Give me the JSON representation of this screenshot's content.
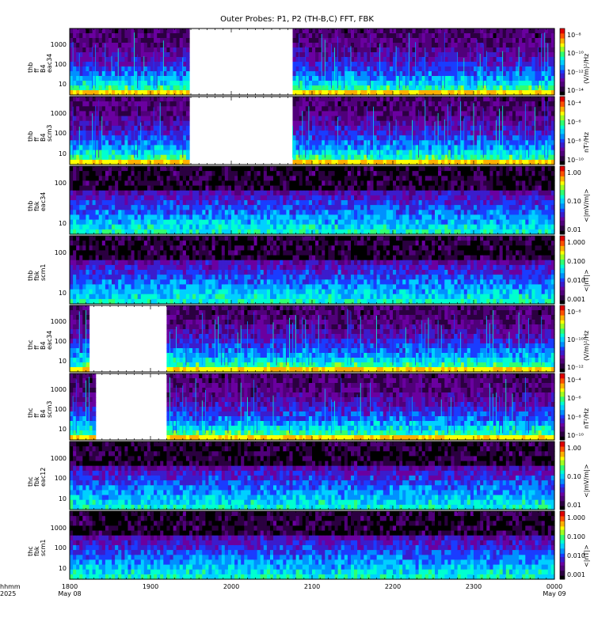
{
  "title": "Outer Probes: P1, P2 (TH-B,C) FFT, FBK",
  "x_axis": {
    "corner_label_1": "hhmm",
    "corner_label_2": "2025",
    "ticks": [
      "1800",
      "1900",
      "2000",
      "2100",
      "2200",
      "2300",
      "0000"
    ],
    "dates": [
      "May 08",
      "May 09"
    ]
  },
  "chart_data": [
    {
      "type": "heatmap",
      "panel": "thb_ff_eac34",
      "ylabel": [
        "thb",
        "ff",
        "B4",
        "eac34"
      ],
      "yticks": [
        "1000",
        "100",
        "10"
      ],
      "colorbar": {
        "ticks": [
          "10⁻⁸",
          "10⁻¹⁰",
          "10⁻¹²",
          "10⁻¹⁴"
        ],
        "unit": "(V/m)²/Hz"
      },
      "log_y": true,
      "gaps": [
        [
          "1930",
          "2045"
        ]
      ]
    },
    {
      "type": "heatmap",
      "panel": "thb_ff_scm3",
      "ylabel": [
        "thb",
        "ff",
        "B4",
        "scm3"
      ],
      "yticks": [
        "1000",
        "100",
        "10"
      ],
      "colorbar": {
        "ticks": [
          "10⁻⁴",
          "10⁻⁶",
          "10⁻⁸",
          "10⁻¹⁰"
        ],
        "unit": "nT²/Hz"
      },
      "log_y": true,
      "gaps": [
        [
          "1930",
          "2045"
        ]
      ]
    },
    {
      "type": "heatmap",
      "panel": "thb_fbk_eac34",
      "ylabel": [
        "thb",
        "fbk",
        "eac34"
      ],
      "yticks": [
        "100",
        "10"
      ],
      "colorbar": {
        "ticks": [
          "1.00",
          "0.10",
          "0.01"
        ],
        "unit": "<|mV/m|>"
      },
      "log_y": true
    },
    {
      "type": "heatmap",
      "panel": "thb_fbk_scm1",
      "ylabel": [
        "thb",
        "fbk",
        "scm1"
      ],
      "yticks": [
        "100",
        "10"
      ],
      "colorbar": {
        "ticks": [
          "1.000",
          "0.100",
          "0.010",
          "0.001"
        ],
        "unit": "<|nT|>"
      },
      "log_y": true
    },
    {
      "type": "heatmap",
      "panel": "thc_ff_eac34",
      "ylabel": [
        "thc",
        "ff",
        "B4",
        "eac34"
      ],
      "yticks": [
        "1000",
        "100",
        "10"
      ],
      "colorbar": {
        "ticks": [
          "10⁻⁸",
          "10⁻¹⁰",
          "10⁻¹²"
        ],
        "unit": "(V/m)²/Hz"
      },
      "log_y": true,
      "gaps": [
        [
          "1815",
          "1910"
        ]
      ]
    },
    {
      "type": "heatmap",
      "panel": "thc_ff_scm3",
      "ylabel": [
        "thc",
        "ff",
        "B4",
        "scm3"
      ],
      "yticks": [
        "1000",
        "100",
        "10"
      ],
      "colorbar": {
        "ticks": [
          "10⁻⁴",
          "10⁻⁶",
          "10⁻⁸",
          "10⁻¹⁰"
        ],
        "unit": "nT²/Hz"
      },
      "log_y": true,
      "gaps": [
        [
          "1820",
          "1910"
        ]
      ]
    },
    {
      "type": "heatmap",
      "panel": "thc_fbk_eac12",
      "ylabel": [
        "thc",
        "fbk",
        "eac12"
      ],
      "yticks": [
        "1000",
        "100",
        "10"
      ],
      "colorbar": {
        "ticks": [
          "1.00",
          "0.10",
          "0.01"
        ],
        "unit": "<|mV/m|>"
      },
      "log_y": true
    },
    {
      "type": "heatmap",
      "panel": "thc_fbk_scm1",
      "ylabel": [
        "thc",
        "fbk",
        "scm1"
      ],
      "yticks": [
        "1000",
        "100",
        "10"
      ],
      "colorbar": {
        "ticks": [
          "1.000",
          "0.100",
          "0.010",
          "0.001"
        ],
        "unit": "<|nT|>"
      },
      "log_y": true
    }
  ]
}
